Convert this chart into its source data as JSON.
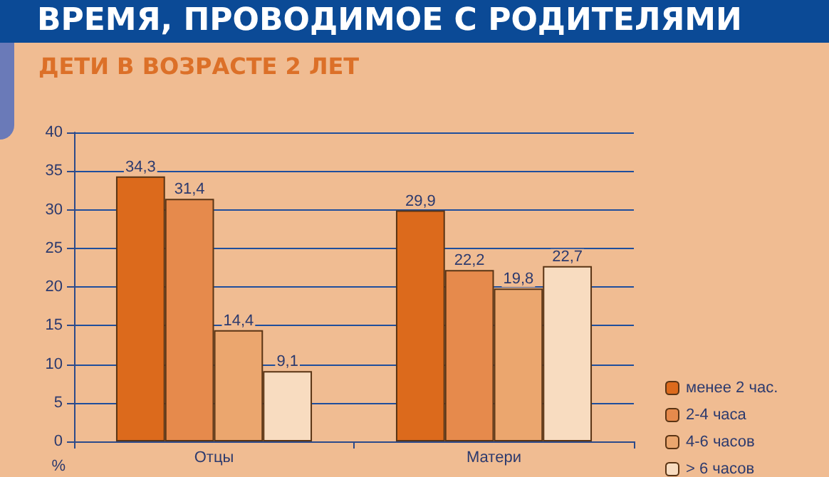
{
  "chart_data": {
    "type": "bar",
    "title": "ВРЕМЯ, ПРОВОДИМОЕ С РОДИТЕЛЯМИ",
    "subtitle": "ДЕТИ В ВОЗРАСТЕ 2 ЛЕТ",
    "ylabel": "%",
    "categories": [
      "Отцы",
      "Матери"
    ],
    "series": [
      {
        "name": "менее 2 час.",
        "color": "#dc6a1c",
        "values": [
          34.3,
          29.9
        ],
        "value_labels": [
          "34,3",
          "29,9"
        ]
      },
      {
        "name": "2-4 часа",
        "color": "#e68a4c",
        "values": [
          31.4,
          22.2
        ],
        "value_labels": [
          "31,4",
          "22,2"
        ]
      },
      {
        "name": "4-6 часов",
        "color": "#eba66e",
        "values": [
          14.4,
          19.8
        ],
        "value_labels": [
          "14,4",
          "19,8"
        ]
      },
      {
        "name": "> 6 часов",
        "color": "#f8dcc0",
        "values": [
          9.1,
          22.7
        ],
        "value_labels": [
          "9,1",
          "22,7"
        ]
      }
    ],
    "ylim": [
      0,
      40
    ],
    "yticks": [
      0,
      5,
      10,
      15,
      20,
      25,
      30,
      35,
      40
    ],
    "grid": "y",
    "legend": "bottom right"
  }
}
